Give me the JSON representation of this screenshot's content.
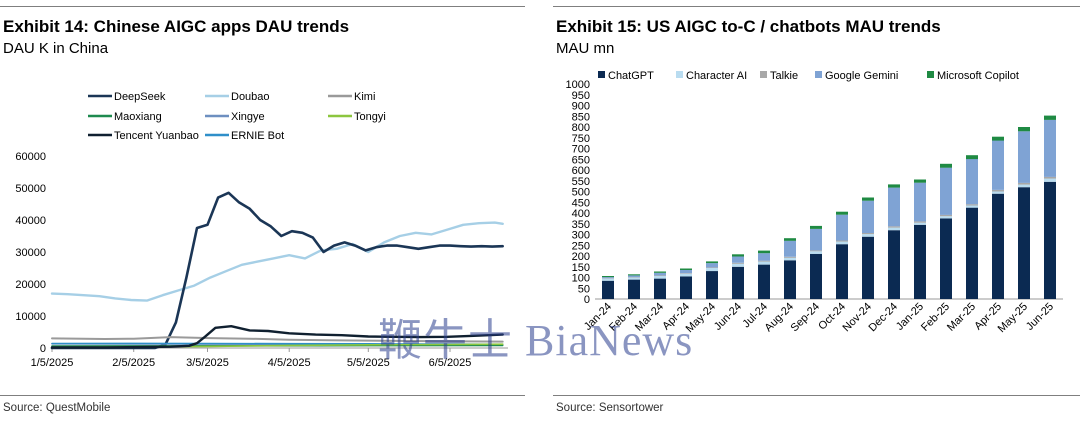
{
  "left": {
    "title": "Exhibit 14: Chinese AIGC apps DAU trends",
    "subtitle": "DAU K in China",
    "source": "Source: QuestMobile"
  },
  "right": {
    "title": "Exhibit 15: US AIGC to-C / chatbots MAU trends",
    "subtitle": "MAU mn",
    "source": "Source: Sensortower"
  },
  "watermark": "鞭牛士 BiaNews",
  "chart_data": [
    {
      "type": "line",
      "ylim": [
        0,
        60000
      ],
      "yticks": [
        "0",
        "10000",
        "20000",
        "30000",
        "40000",
        "50000",
        "60000"
      ],
      "xticks": [
        "1/5/2025",
        "2/5/2025",
        "3/5/2025",
        "4/5/2025",
        "5/5/2025",
        "6/5/2025"
      ],
      "xlim_days": [
        0,
        173
      ],
      "xtick_days": [
        0,
        31,
        59,
        90,
        120,
        151
      ],
      "legend_placement": "top",
      "grid": false,
      "series": [
        {
          "name": "DeepSeek",
          "color": "#1b3656",
          "width": 2.6,
          "x": [
            0,
            31,
            35,
            39,
            43,
            47,
            51,
            55,
            59,
            63,
            67,
            71,
            75,
            79,
            83,
            87,
            91,
            95,
            99,
            103,
            107,
            111,
            115,
            119,
            123,
            127,
            131,
            135,
            139,
            143,
            147,
            151,
            155,
            159,
            163,
            167,
            171
          ],
          "y": [
            0,
            0,
            0,
            0,
            1000,
            8000,
            22000,
            37500,
            38500,
            47000,
            48500,
            45500,
            43500,
            40000,
            38000,
            35000,
            36500,
            36000,
            34500,
            30000,
            32000,
            33000,
            32000,
            30500,
            31500,
            32000,
            32000,
            31500,
            31000,
            31500,
            32000,
            32000,
            31800,
            31700,
            31800,
            31700,
            31800
          ]
        },
        {
          "name": "Doubao",
          "color": "#a6cfe6",
          "width": 2.4,
          "x": [
            0,
            6,
            12,
            18,
            24,
            30,
            36,
            42,
            48,
            54,
            60,
            66,
            72,
            78,
            84,
            90,
            96,
            102,
            108,
            114,
            120,
            126,
            132,
            138,
            144,
            150,
            156,
            162,
            168,
            171
          ],
          "y": [
            17000,
            16800,
            16500,
            16200,
            15500,
            15000,
            14800,
            16500,
            18000,
            19500,
            22000,
            24000,
            26000,
            27000,
            28000,
            29000,
            28000,
            30500,
            31000,
            32500,
            30000,
            33000,
            35000,
            36000,
            35500,
            37000,
            38500,
            39000,
            39200,
            38800
          ]
        },
        {
          "name": "Kimi",
          "color": "#9a9a9a",
          "width": 2,
          "x": [
            0,
            20,
            31,
            45,
            60,
            75,
            90,
            105,
            120,
            135,
            150,
            171
          ],
          "y": [
            3000,
            2800,
            2900,
            3400,
            3100,
            2900,
            2600,
            2400,
            2300,
            2200,
            2100,
            2000
          ]
        },
        {
          "name": "Maoxiang",
          "color": "#1e8a4f",
          "width": 1.6,
          "x": [
            0,
            40,
            80,
            120,
            171
          ],
          "y": [
            600,
            650,
            700,
            750,
            800
          ]
        },
        {
          "name": "Xingye",
          "color": "#6d8fc0",
          "width": 1.6,
          "x": [
            0,
            40,
            80,
            120,
            171
          ],
          "y": [
            1300,
            1250,
            1200,
            1150,
            1100
          ]
        },
        {
          "name": "Tongyi",
          "color": "#8cc63f",
          "width": 1.6,
          "x": [
            0,
            30,
            60,
            90,
            120,
            150,
            171
          ],
          "y": [
            200,
            300,
            500,
            800,
            1000,
            1100,
            1200
          ]
        },
        {
          "name": "Tencent Yuanbao",
          "color": "#102030",
          "width": 2.4,
          "x": [
            0,
            20,
            35,
            45,
            52,
            55,
            58,
            62,
            68,
            75,
            82,
            90,
            100,
            110,
            120,
            130,
            140,
            150,
            160,
            171
          ],
          "y": [
            200,
            200,
            300,
            400,
            700,
            1500,
            3500,
            6300,
            6800,
            5500,
            5300,
            4600,
            4200,
            4000,
            3600,
            3500,
            3400,
            3500,
            3800,
            4200
          ]
        },
        {
          "name": "ERNIE Bot",
          "color": "#2f8fc9",
          "width": 1.6,
          "x": [
            0,
            30,
            60,
            90,
            120,
            150,
            171
          ],
          "y": [
            1400,
            1450,
            1400,
            1350,
            1300,
            1200,
            1150
          ]
        }
      ]
    },
    {
      "type": "bar",
      "stacked": true,
      "ylim": [
        0,
        1000
      ],
      "yticks": [
        "0",
        "50",
        "100",
        "150",
        "200",
        "250",
        "300",
        "350",
        "400",
        "450",
        "500",
        "550",
        "600",
        "650",
        "700",
        "750",
        "800",
        "850",
        "900",
        "950",
        "1000"
      ],
      "legend_placement": "top",
      "grid": false,
      "categories": [
        "Jan-24",
        "Feb-24",
        "Mar-24",
        "Apr-24",
        "May-24",
        "Jun-24",
        "Jul-24",
        "Aug-24",
        "Sep-24",
        "Oct-24",
        "Nov-24",
        "Dec-24",
        "Jan-25",
        "Feb-25",
        "Mar-25",
        "Apr-25",
        "May-25",
        "Jun-25"
      ],
      "series": [
        {
          "name": "ChatGPT",
          "color": "#0b2a52",
          "values": [
            85,
            90,
            95,
            105,
            130,
            150,
            160,
            180,
            210,
            255,
            290,
            320,
            345,
            375,
            425,
            490,
            520,
            545
          ]
        },
        {
          "name": "Character AI",
          "color": "#b9dcf0",
          "values": [
            10,
            10,
            12,
            12,
            14,
            14,
            14,
            12,
            12,
            12,
            12,
            12,
            10,
            10,
            10,
            10,
            12,
            15
          ]
        },
        {
          "name": "Talkie",
          "color": "#a8a8a8",
          "values": [
            2,
            2,
            3,
            3,
            3,
            4,
            4,
            4,
            4,
            5,
            5,
            6,
            6,
            6,
            6,
            7,
            8,
            8
          ]
        },
        {
          "name": "Google Gemini",
          "color": "#7fa3d4",
          "values": [
            5,
            8,
            12,
            15,
            20,
            30,
            35,
            75,
            100,
            120,
            150,
            180,
            180,
            220,
            210,
            230,
            240,
            265
          ]
        },
        {
          "name": "Microsoft Copilot",
          "color": "#1f8a43",
          "values": [
            5,
            5,
            6,
            7,
            8,
            10,
            12,
            12,
            14,
            14,
            15,
            15,
            15,
            18,
            18,
            18,
            20,
            20
          ]
        }
      ]
    }
  ]
}
